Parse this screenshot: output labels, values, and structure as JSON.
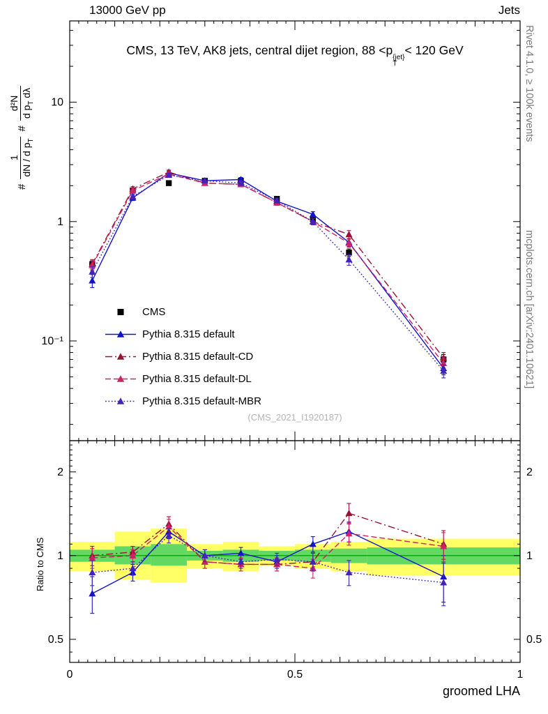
{
  "header": {
    "left": "13000 GeV pp",
    "right": "Jets"
  },
  "title": {
    "pre": "CMS, 13 TeV, AK8 jets, central dijet region, 88 <p",
    "sup": "{jet}",
    "sub": "T",
    "post": "< 120 GeV"
  },
  "y_axis_label": {
    "hash1": "#",
    "frac1_num": "1",
    "frac1_den": "dN / d p",
    "frac1_den_sub": "T",
    "hash2": "#",
    "frac2_num": "d²N",
    "frac2_den": "d p",
    "frac2_den_sub": "T",
    "frac2_den_tail": " dλ"
  },
  "ratio_label": "Ratio to CMS",
  "right_margin": {
    "top": "Rivet 4.1.0, ≥ 100k events",
    "bottom": "mcplots.cern.ch [arXiv:2401.10621]"
  },
  "watermark": "(CMS_2021_I1920187)",
  "axes": {
    "x": {
      "title": "groomed LHA",
      "lim": [
        0,
        1
      ],
      "ticks": [
        {
          "value": 0,
          "label": "0"
        },
        {
          "value": 0.5,
          "label": "0.5"
        },
        {
          "value": 1,
          "label": "1"
        }
      ]
    },
    "main_y": {
      "scale": "log",
      "lim": [
        0.0146,
        48
      ],
      "ticks": [
        {
          "value": 10,
          "label": "10"
        },
        {
          "value": 1,
          "label": "1"
        },
        {
          "value": 0.1,
          "label": "10⁻¹"
        }
      ]
    },
    "ratio_y": {
      "scale": "log",
      "lim": [
        0.413,
        2.59
      ],
      "ticks": [
        {
          "value": 2,
          "label": "2"
        },
        {
          "value": 1,
          "label": "1"
        },
        {
          "value": 0.5,
          "label": "0.5"
        }
      ]
    }
  },
  "chart_data": {
    "type": "line",
    "title": "CMS, 13 TeV, AK8 jets, central dijet region, 88 < pT(jet) < 120 GeV",
    "xlabel": "groomed LHA",
    "ylabel": "# 1/(dN/dpT) # d2N/(dpT dlambda)",
    "xlim": [
      0,
      1
    ],
    "main_ylim": [
      0.0146,
      48
    ],
    "main_yscale": "log",
    "ratio_ylim": [
      0.413,
      2.59
    ],
    "x": [
      0.05,
      0.14,
      0.22,
      0.3,
      0.38,
      0.46,
      0.54,
      0.62,
      0.83
    ],
    "bin_edges": [
      0,
      0.1,
      0.18,
      0.26,
      0.34,
      0.42,
      0.5,
      0.58,
      0.66,
      1.0
    ],
    "series": [
      {
        "name": "CMS",
        "color": "#000000",
        "marker": "square",
        "line": "none",
        "y": [
          0.44,
          1.82,
          2.1,
          2.2,
          2.2,
          1.55,
          1.05,
          0.55,
          0.07
        ],
        "yerr": [
          0.03,
          0.07,
          0.07,
          0.07,
          0.07,
          0.06,
          0.05,
          0.04,
          0.007
        ]
      },
      {
        "name": "Pythia 8.315 default",
        "color": "#1212cc",
        "marker": "triangle",
        "line": "solid",
        "y": [
          0.32,
          1.58,
          2.55,
          2.2,
          2.25,
          1.48,
          1.15,
          0.67,
          0.059
        ],
        "yerr": [
          0.04,
          0.08,
          0.1,
          0.09,
          0.09,
          0.07,
          0.06,
          0.05,
          0.007
        ],
        "ratio": [
          0.73,
          0.87,
          1.22,
          1.0,
          1.02,
          0.95,
          1.1,
          1.22,
          0.84
        ],
        "ratio_err": [
          0.11,
          0.06,
          0.07,
          0.05,
          0.05,
          0.05,
          0.07,
          0.1,
          0.16
        ]
      },
      {
        "name": "Pythia 8.315 default-CD",
        "color": "#991133",
        "marker": "triangle",
        "line": "dashdot",
        "y": [
          0.44,
          1.88,
          2.6,
          2.1,
          2.05,
          1.44,
          1.0,
          0.78,
          0.072
        ],
        "yerr": [
          0.04,
          0.08,
          0.1,
          0.09,
          0.09,
          0.07,
          0.06,
          0.06,
          0.008
        ],
        "ratio": [
          1.0,
          1.03,
          1.3,
          0.95,
          0.93,
          0.93,
          0.95,
          1.42,
          1.1
        ],
        "ratio_err": [
          0.08,
          0.05,
          0.08,
          0.05,
          0.05,
          0.05,
          0.07,
          0.12,
          0.13
        ]
      },
      {
        "name": "Pythia 8.315 default-DL",
        "color": "#cc2266",
        "marker": "triangle",
        "line": "dashed",
        "y": [
          0.43,
          1.82,
          2.5,
          2.1,
          2.05,
          1.44,
          1.0,
          0.66,
          0.065
        ],
        "yerr": [
          0.04,
          0.08,
          0.1,
          0.09,
          0.09,
          0.07,
          0.06,
          0.05,
          0.007
        ],
        "ratio": [
          0.98,
          1.0,
          1.27,
          0.95,
          0.93,
          0.93,
          0.9,
          1.2,
          1.08
        ],
        "ratio_err": [
          0.08,
          0.05,
          0.08,
          0.05,
          0.05,
          0.05,
          0.07,
          0.11,
          0.13
        ]
      },
      {
        "name": "Pythia 8.315 default-MBR",
        "color": "#4422bb",
        "marker": "triangle",
        "line": "dotted",
        "y": [
          0.38,
          1.62,
          2.45,
          2.2,
          2.1,
          1.5,
          1.0,
          0.48,
          0.056
        ],
        "yerr": [
          0.04,
          0.08,
          0.1,
          0.09,
          0.09,
          0.07,
          0.06,
          0.05,
          0.007
        ],
        "ratio": [
          0.87,
          0.9,
          1.18,
          1.0,
          0.95,
          0.97,
          0.95,
          0.87,
          0.8
        ],
        "ratio_err": [
          0.09,
          0.05,
          0.07,
          0.05,
          0.05,
          0.05,
          0.07,
          0.09,
          0.14
        ]
      }
    ],
    "ratio_bands": {
      "edges": [
        0,
        0.1,
        0.18,
        0.26,
        0.34,
        0.42,
        0.5,
        0.58,
        0.66,
        1.0
      ],
      "yellow": [
        [
          0.88,
          1.12
        ],
        [
          0.82,
          1.22
        ],
        [
          0.8,
          1.25
        ],
        [
          0.9,
          1.1
        ],
        [
          0.88,
          1.12
        ],
        [
          0.92,
          1.08
        ],
        [
          0.9,
          1.1
        ],
        [
          0.88,
          1.12
        ],
        [
          0.85,
          1.15
        ]
      ],
      "green": [
        [
          0.95,
          1.05
        ],
        [
          0.93,
          1.08
        ],
        [
          0.92,
          1.1
        ],
        [
          0.96,
          1.04
        ],
        [
          0.95,
          1.05
        ],
        [
          0.96,
          1.04
        ],
        [
          0.95,
          1.05
        ],
        [
          0.94,
          1.06
        ],
        [
          0.93,
          1.07
        ]
      ]
    },
    "band_colors": {
      "yellow": "#ffff66",
      "green": "#63d963",
      "center_line": "#00a800"
    },
    "legend_position": "left-middle"
  }
}
